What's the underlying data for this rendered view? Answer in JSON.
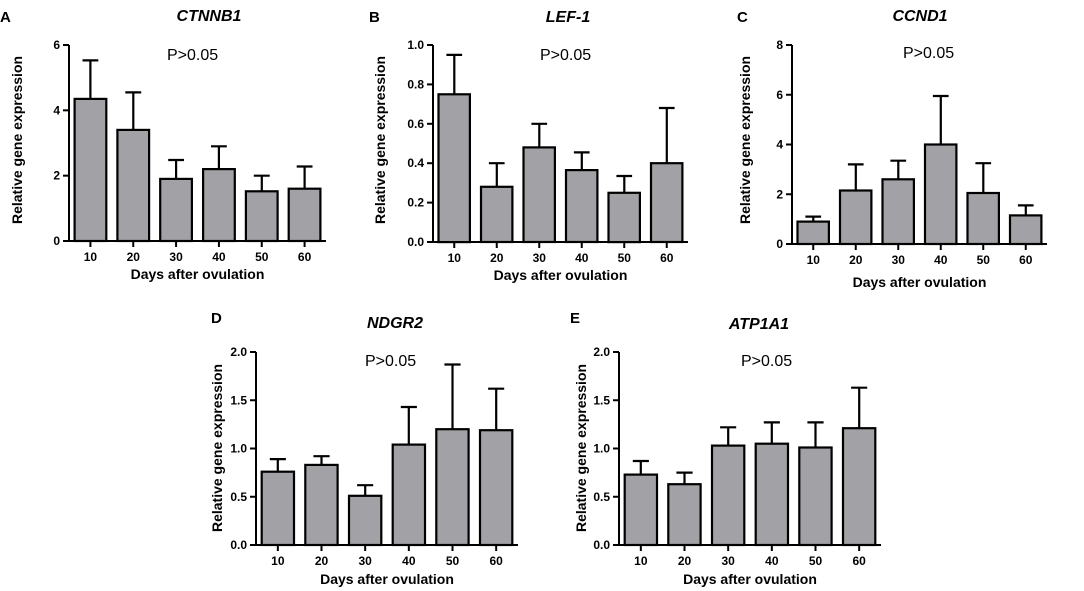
{
  "colors": {
    "bar_fill": "#a2a2a6",
    "stroke": "#000000",
    "background": "#ffffff"
  },
  "chart_data": [
    {
      "panel": "A",
      "type": "bar",
      "title": "CTNNB1",
      "annotation": "P>0.05",
      "xlabel": "Days after ovulation",
      "ylabel": "Relative gene expression",
      "categories": [
        "10",
        "20",
        "30",
        "40",
        "50",
        "60"
      ],
      "values": [
        4.35,
        3.4,
        1.9,
        2.2,
        1.52,
        1.6
      ],
      "errors": [
        1.18,
        1.15,
        0.58,
        0.7,
        0.48,
        0.68
      ],
      "ylim": [
        0,
        6
      ],
      "yticks": [
        0,
        2,
        4,
        6
      ],
      "ytick_labels": [
        "0",
        "2",
        "4",
        "6"
      ]
    },
    {
      "panel": "B",
      "type": "bar",
      "title": "LEF-1",
      "annotation": "P>0.05",
      "xlabel": "Days after ovulation",
      "ylabel": "Relative gene expression",
      "categories": [
        "10",
        "20",
        "30",
        "40",
        "50",
        "60"
      ],
      "values": [
        0.75,
        0.28,
        0.48,
        0.365,
        0.25,
        0.4
      ],
      "errors": [
        0.2,
        0.12,
        0.12,
        0.09,
        0.085,
        0.28
      ],
      "ylim": [
        0,
        1.0
      ],
      "yticks": [
        0,
        0.2,
        0.4,
        0.6,
        0.8,
        1.0
      ],
      "ytick_labels": [
        "0.0",
        "0.2",
        "0.4",
        "0.6",
        "0.8",
        "1.0"
      ]
    },
    {
      "panel": "C",
      "type": "bar",
      "title": "CCND1",
      "annotation": "P>0.05",
      "xlabel": "Days after ovulation",
      "ylabel": "Relative gene expression",
      "categories": [
        "10",
        "20",
        "30",
        "40",
        "50",
        "60"
      ],
      "values": [
        0.9,
        2.15,
        2.6,
        4.0,
        2.05,
        1.15
      ],
      "errors": [
        0.2,
        1.05,
        0.75,
        1.95,
        1.2,
        0.4
      ],
      "ylim": [
        0,
        8
      ],
      "yticks": [
        0,
        2,
        4,
        6,
        8
      ],
      "ytick_labels": [
        "0",
        "2",
        "4",
        "6",
        "8"
      ]
    },
    {
      "panel": "D",
      "type": "bar",
      "title": "NDGR2",
      "annotation": "P>0.05",
      "xlabel": "Days after ovulation",
      "ylabel": "Relative gene expression",
      "categories": [
        "10",
        "20",
        "30",
        "40",
        "50",
        "60"
      ],
      "values": [
        0.76,
        0.83,
        0.51,
        1.04,
        1.2,
        1.19
      ],
      "errors": [
        0.13,
        0.09,
        0.11,
        0.39,
        0.67,
        0.43
      ],
      "ylim": [
        0,
        2.0
      ],
      "yticks": [
        0,
        0.5,
        1.0,
        1.5,
        2.0
      ],
      "ytick_labels": [
        "0.0",
        "0.5",
        "1.0",
        "1.5",
        "2.0"
      ]
    },
    {
      "panel": "E",
      "type": "bar",
      "title": "ATP1A1",
      "annotation": "P>0.05",
      "xlabel": "Days after ovulation",
      "ylabel": "Relative gene expression",
      "categories": [
        "10",
        "20",
        "30",
        "40",
        "50",
        "60"
      ],
      "values": [
        0.73,
        0.63,
        1.03,
        1.05,
        1.01,
        1.21
      ],
      "errors": [
        0.14,
        0.12,
        0.19,
        0.22,
        0.26,
        0.42
      ],
      "ylim": [
        0,
        2.0
      ],
      "yticks": [
        0,
        0.5,
        1.0,
        1.5,
        2.0
      ],
      "ytick_labels": [
        "0.0",
        "0.5",
        "1.0",
        "1.5",
        "2.0"
      ]
    }
  ]
}
